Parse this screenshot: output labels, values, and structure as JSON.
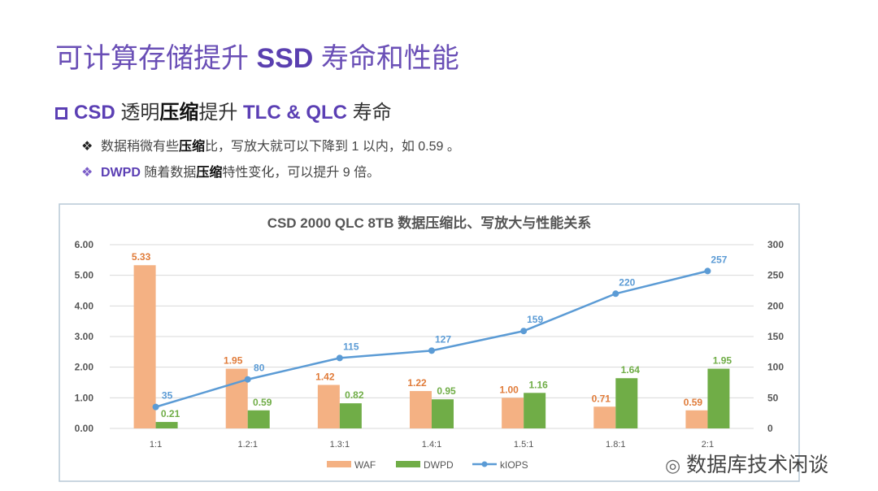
{
  "slide": {
    "title_parts": [
      "可计算存储提升 ",
      "SSD",
      " 寿命和性能"
    ],
    "subtitle_parts": [
      "CSD",
      " 透明",
      "压缩",
      "提升 ",
      "TLC & QLC",
      " 寿命"
    ],
    "bullets": [
      {
        "icon": "diamond-bullet-icon",
        "parts": [
          "",
          "数据稍微有些",
          "压缩",
          "比，写放大就可以下降到 1 以内，如 0.59 。"
        ]
      },
      {
        "icon": "diamond-bullet-icon",
        "parts": [
          "DWPD",
          " 随着数据",
          "压缩",
          "特性变化，可以提升 9 倍。"
        ]
      }
    ],
    "watermark": "数据库技术闲谈"
  },
  "chart_data": {
    "type": "bar",
    "title": "CSD 2000 QLC 8TB 数据压缩比、写放大与性能关系",
    "categories": [
      "1:1",
      "1.2:1",
      "1.3:1",
      "1.4:1",
      "1.5:1",
      "1.8:1",
      "2:1"
    ],
    "series": [
      {
        "name": "WAF",
        "type": "bar",
        "axis": "left",
        "color": "#f4b183",
        "label_color": "#e07b39",
        "values": [
          5.33,
          1.95,
          1.42,
          1.22,
          1.0,
          0.71,
          0.59
        ]
      },
      {
        "name": "DWPD",
        "type": "bar",
        "axis": "left",
        "color": "#70ad47",
        "label_color": "#70ad47",
        "values": [
          0.21,
          0.59,
          0.82,
          0.95,
          1.16,
          1.64,
          1.95
        ]
      },
      {
        "name": "kIOPS",
        "type": "line",
        "axis": "right",
        "color": "#5b9bd5",
        "label_color": "#5b9bd5",
        "values": [
          35,
          80,
          115,
          127,
          159,
          220,
          257
        ]
      }
    ],
    "y_left": {
      "min": 0,
      "max": 6,
      "ticks": [
        "0.00",
        "1.00",
        "2.00",
        "3.00",
        "4.00",
        "5.00",
        "6.00"
      ]
    },
    "y_right": {
      "min": 0,
      "max": 300,
      "ticks": [
        "0",
        "50",
        "100",
        "150",
        "200",
        "250",
        "300"
      ]
    },
    "grid": true,
    "legend": "bottom"
  }
}
